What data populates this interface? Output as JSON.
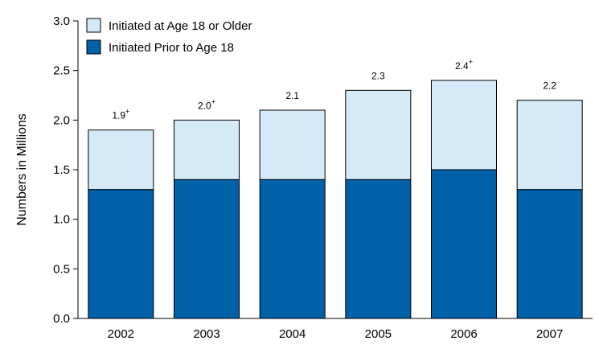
{
  "chart_data": {
    "type": "bar",
    "stacked": true,
    "categories": [
      "2002",
      "2003",
      "2004",
      "2005",
      "2006",
      "2007"
    ],
    "series": [
      {
        "name": "Initiated Prior to Age 18",
        "values": [
          1.3,
          1.4,
          1.4,
          1.4,
          1.5,
          1.3
        ],
        "color": "#0060a8"
      },
      {
        "name": "Initiated at Age 18 or Older",
        "values": [
          0.6,
          0.6,
          0.7,
          0.9,
          0.9,
          0.9
        ],
        "color": "#d4ebf7"
      }
    ],
    "totals": [
      {
        "value": "1.9",
        "mark": "+"
      },
      {
        "value": "2.0",
        "mark": "+"
      },
      {
        "value": "2.1",
        "mark": ""
      },
      {
        "value": "2.3",
        "mark": ""
      },
      {
        "value": "2.4",
        "mark": "+"
      },
      {
        "value": "2.2",
        "mark": ""
      }
    ],
    "ylabel": "Numbers in Millions",
    "xlabel": "",
    "ylim": [
      0,
      3.0
    ],
    "yticks": [
      "0.0",
      "0.5",
      "1.0",
      "1.5",
      "2.0",
      "2.5",
      "3.0"
    ],
    "grid": false,
    "legend": {
      "placement": "top-left",
      "order": [
        "Initiated at Age 18 or Older",
        "Initiated Prior to Age 18"
      ]
    }
  }
}
